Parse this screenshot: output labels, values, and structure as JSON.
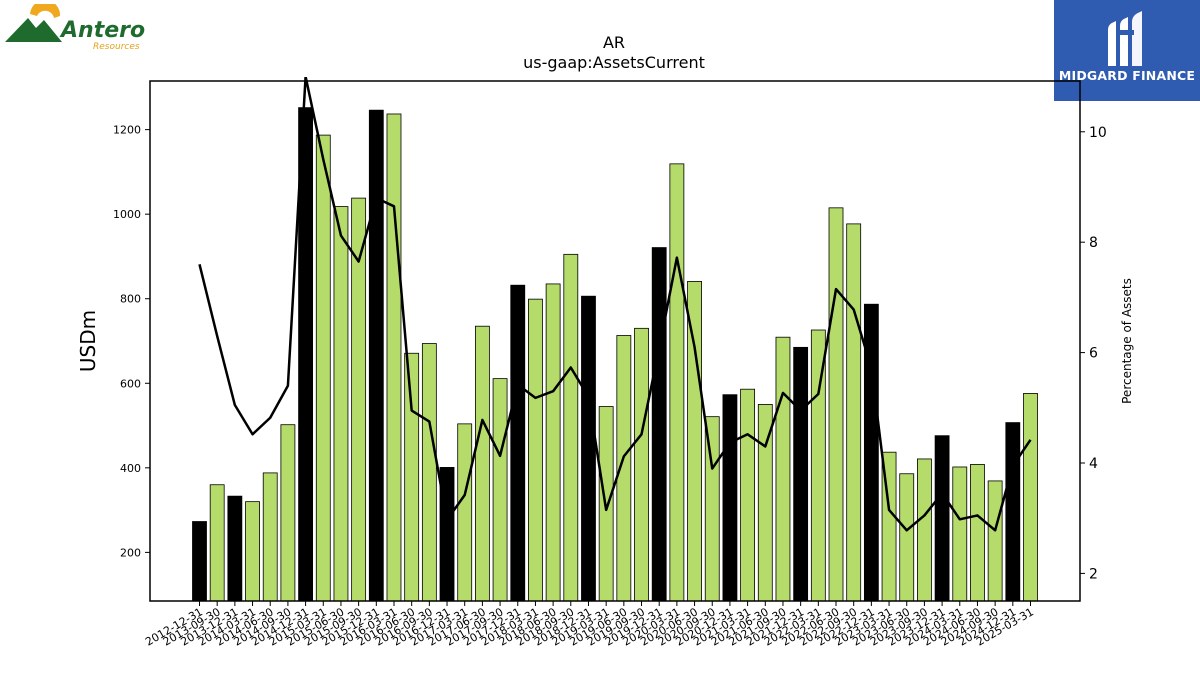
{
  "logos": {
    "left": {
      "name": "Antero",
      "sub": "Resources"
    },
    "right": {
      "name": "MIDGARD FINANCE"
    }
  },
  "colors": {
    "bar_light": "#b5dc6b",
    "bar_dark": "#000000",
    "line": "#000000"
  },
  "chart_data": {
    "type": "bar",
    "title": "AR",
    "subtitle": "us-gaap:AssetsCurrent",
    "ylabel": "USDm",
    "y2label": "Percentage of Assets",
    "ylim": [
      85,
      1315
    ],
    "y2lim": [
      1.5,
      10.92
    ],
    "yticks": [
      200,
      400,
      600,
      800,
      1000,
      1200
    ],
    "y2ticks": [
      2,
      4,
      6,
      8,
      10
    ],
    "categories": [
      "2012-12-31",
      "2013-09-30",
      "2013-12-31",
      "2014-03-31",
      "2014-06-30",
      "2014-09-30",
      "2014-12-31",
      "2015-03-31",
      "2015-06-30",
      "2015-09-30",
      "2015-12-31",
      "2016-03-31",
      "2016-06-30",
      "2016-09-30",
      "2016-12-31",
      "2017-03-31",
      "2017-06-30",
      "2017-09-30",
      "2017-12-31",
      "2018-03-31",
      "2018-06-30",
      "2018-09-30",
      "2018-12-31",
      "2019-03-31",
      "2019-06-30",
      "2019-09-30",
      "2019-12-31",
      "2020-03-31",
      "2020-06-30",
      "2020-09-30",
      "2020-12-31",
      "2021-03-31",
      "2021-06-30",
      "2021-09-30",
      "2021-12-31",
      "2022-03-31",
      "2022-06-30",
      "2022-09-30",
      "2022-12-31",
      "2023-03-31",
      "2023-06-30",
      "2023-09-30",
      "2023-12-31",
      "2024-03-31",
      "2024-06-30",
      "2024-09-30",
      "2024-12-31",
      "2025-03-31"
    ],
    "series": [
      {
        "type": "bar",
        "values": [
          273,
          360,
          333,
          320,
          388,
          502,
          1252,
          1187,
          1018,
          1038,
          1246,
          1237,
          671,
          694,
          401,
          504,
          735,
          611,
          832,
          799,
          835,
          905,
          806,
          545,
          713,
          730,
          921,
          1119,
          841,
          521,
          573,
          586,
          550,
          709,
          685,
          726,
          1015,
          977,
          787,
          437,
          386,
          421,
          476,
          402,
          408,
          369,
          507,
          576
        ],
        "highlight": [
          true,
          false,
          true,
          false,
          false,
          false,
          true,
          false,
          false,
          false,
          true,
          false,
          false,
          false,
          true,
          false,
          false,
          false,
          true,
          false,
          false,
          false,
          true,
          false,
          false,
          false,
          true,
          false,
          false,
          false,
          true,
          false,
          false,
          false,
          true,
          false,
          false,
          false,
          true,
          false,
          false,
          false,
          true,
          false,
          false,
          false,
          true,
          false
        ]
      },
      {
        "type": "line",
        "axis": "right",
        "values": [
          7.6,
          6.3,
          5.05,
          4.52,
          4.82,
          5.4,
          11.0,
          9.5,
          8.12,
          7.65,
          8.8,
          8.65,
          4.95,
          4.75,
          2.97,
          3.42,
          4.78,
          4.13,
          5.42,
          5.18,
          5.3,
          5.73,
          5.2,
          3.15,
          4.12,
          4.52,
          6.08,
          7.72,
          6.1,
          3.9,
          4.37,
          4.52,
          4.3,
          5.27,
          4.95,
          5.25,
          7.15,
          6.78,
          5.72,
          3.15,
          2.78,
          3.05,
          3.45,
          2.98,
          3.05,
          2.78,
          3.95,
          4.42
        ]
      }
    ],
    "grid": false,
    "legend": "none"
  }
}
